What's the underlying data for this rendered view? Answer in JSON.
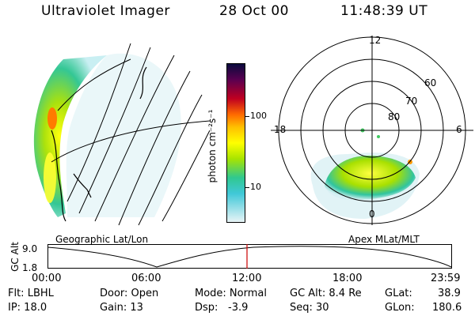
{
  "header": {
    "title": "Ultraviolet Imager",
    "date": "28 Oct 00",
    "time": "11:48:39 UT"
  },
  "left_panel": {
    "caption": "Geographic Lat/Lon"
  },
  "right_panel": {
    "caption": "Apex MLat/MLT",
    "mlt_labels": {
      "top": "12",
      "left": "18",
      "right": "6",
      "bottom": "0"
    },
    "lat_labels": [
      "60",
      "70",
      "80"
    ]
  },
  "colorbar": {
    "unit_label": "photon cm⁻²s⁻¹",
    "ticks": [
      "100",
      "10"
    ]
  },
  "altitude_plot": {
    "ylabel": "GC Alt",
    "yticks": [
      "9.0",
      "1.8"
    ],
    "xticks": [
      "00:00",
      "06:00",
      "12:00",
      "18:00",
      "23:59"
    ],
    "current_time_color": "#cc0000"
  },
  "footer": {
    "flt": "Flt: LBHL",
    "ip": "IP: 18.0",
    "door": "Door: Open",
    "gain": "Gain: 13",
    "mode": "Mode: Normal",
    "dsp_label": "Dsp:",
    "dsp_value": "-3.9",
    "gcalt": "GC Alt: 8.4 Re",
    "seq": "Seq: 30",
    "glat_label": "GLat:",
    "glat_value": "38.9",
    "glon_label": "GLon:",
    "glon_value": "180.6"
  }
}
